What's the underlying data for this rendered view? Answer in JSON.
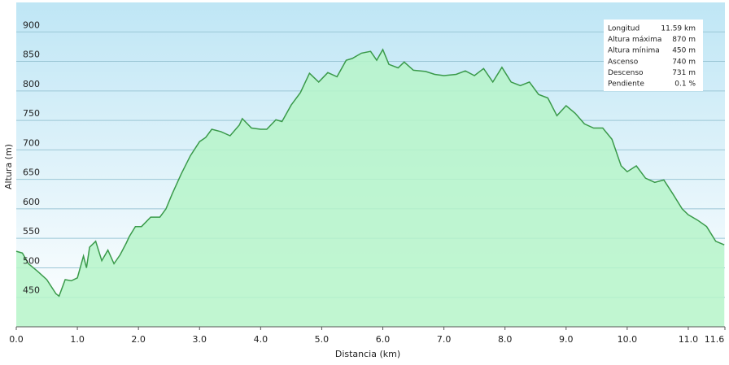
{
  "chart_data": {
    "type": "area",
    "x_label": "Distancia  (km)",
    "y_label": "Altura (m)",
    "color": "#3a9a4a",
    "fill": "#b6f5c9",
    "grid": true,
    "xlim": [
      0,
      11.6
    ],
    "ylim": [
      400,
      950
    ],
    "xticks": [
      {
        "value": 0,
        "label": "0.0"
      },
      {
        "value": 1,
        "label": "1.0"
      },
      {
        "value": 2,
        "label": "2.0"
      },
      {
        "value": 3,
        "label": "3.0"
      },
      {
        "value": 4,
        "label": "4.0"
      },
      {
        "value": 5,
        "label": "5.0"
      },
      {
        "value": 6,
        "label": "6.0"
      },
      {
        "value": 7,
        "label": "7.0"
      },
      {
        "value": 8,
        "label": "8.0"
      },
      {
        "value": 9,
        "label": "9.0"
      },
      {
        "value": 10,
        "label": "10.0"
      },
      {
        "value": 11,
        "label": "11.0"
      },
      11.6
    ],
    "yticks": [
      450,
      500,
      550,
      600,
      650,
      700,
      750,
      800,
      850,
      900
    ],
    "x": [
      0,
      0.1,
      0.2,
      0.35,
      0.5,
      0.65,
      0.7,
      0.8,
      0.9,
      1.0,
      1.1,
      1.15,
      1.2,
      1.3,
      1.4,
      1.5,
      1.6,
      1.7,
      1.8,
      1.85,
      1.95,
      2.05,
      2.2,
      2.35,
      2.45,
      2.55,
      2.7,
      2.85,
      3.0,
      3.1,
      3.2,
      3.35,
      3.5,
      3.65,
      3.7,
      3.85,
      4.0,
      4.1,
      4.25,
      4.35,
      4.5,
      4.65,
      4.8,
      4.95,
      5.1,
      5.25,
      5.4,
      5.5,
      5.65,
      5.8,
      5.9,
      6.0,
      6.1,
      6.25,
      6.35,
      6.5,
      6.7,
      6.85,
      7.0,
      7.2,
      7.35,
      7.5,
      7.65,
      7.8,
      7.95,
      8.1,
      8.25,
      8.4,
      8.55,
      8.7,
      8.85,
      9.0,
      9.15,
      9.3,
      9.45,
      9.6,
      9.75,
      9.9,
      10.0,
      10.15,
      10.3,
      10.45,
      10.6,
      10.75,
      10.9,
      11.0,
      11.15,
      11.3,
      11.45,
      11.59
    ],
    "values": [
      528,
      525,
      507,
      494,
      480,
      456,
      452,
      480,
      478,
      483,
      520,
      500,
      535,
      545,
      512,
      530,
      507,
      522,
      542,
      553,
      570,
      570,
      586,
      586,
      600,
      625,
      659,
      690,
      714,
      721,
      735,
      731,
      724,
      742,
      753,
      737,
      735,
      735,
      751,
      748,
      776,
      797,
      830,
      815,
      831,
      824,
      852,
      855,
      864,
      867,
      852,
      870,
      845,
      839,
      849,
      835,
      833,
      828,
      826,
      828,
      834,
      826,
      838,
      815,
      840,
      815,
      809,
      815,
      794,
      788,
      758,
      775,
      762,
      744,
      737,
      737,
      718,
      673,
      663,
      673,
      652,
      645,
      649,
      625,
      600,
      590,
      581,
      570,
      545,
      539
    ],
    "stats": [
      {
        "label": "Longitud",
        "value": "11.59 km"
      },
      {
        "label": "Altura máxima",
        "value": "870 m"
      },
      {
        "label": "Altura mínima",
        "value": "450 m"
      },
      {
        "label": "Ascenso",
        "value": "740 m"
      },
      {
        "label": "Descenso",
        "value": "731 m"
      },
      {
        "label": "Pendiente",
        "value": "0.1 %"
      }
    ]
  }
}
